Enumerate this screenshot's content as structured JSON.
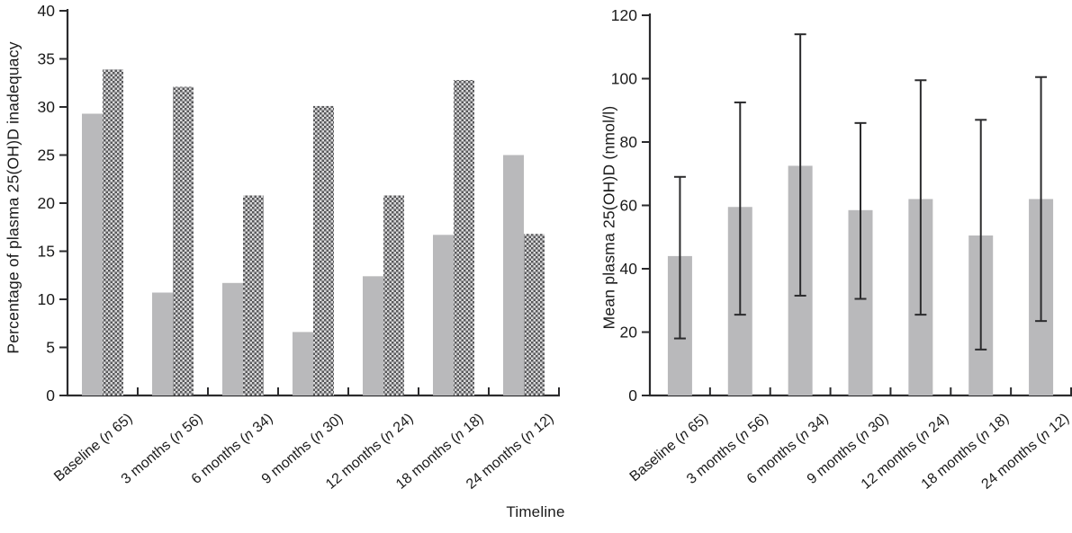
{
  "figure": {
    "xlabel": "Timeline",
    "background": "#ffffff"
  },
  "colors": {
    "solid_bar": "#b9b9bb",
    "pattern_dark": "#58585a",
    "pattern_light": "#d8d8d9",
    "axis": "#2b2b2d",
    "error_bar": "#2b2b2d",
    "text": "#1b1b1b"
  },
  "chart_data": [
    {
      "id": "inadequacy",
      "type": "bar",
      "title": "",
      "xlabel": "",
      "ylabel": "Percentage of plasma 25(OH)D inadequacy",
      "ylim": [
        0,
        40
      ],
      "yticks": [
        0,
        5,
        10,
        15,
        20,
        25,
        30,
        35,
        40
      ],
      "grid": false,
      "legend": "none",
      "categories": [
        "Baseline (n 65)",
        "3 months (n 56)",
        "6 months (n 34)",
        "9 months (n 30)",
        "12 months (n 24)",
        "18 months (n 18)",
        "24 months (n 12)"
      ],
      "category_parts": [
        {
          "prefix": "Baseline",
          "n_symbol": "n",
          "count": "65"
        },
        {
          "prefix": "3 months",
          "n_symbol": "n",
          "count": "56"
        },
        {
          "prefix": "6 months",
          "n_symbol": "n",
          "count": "34"
        },
        {
          "prefix": "9 months",
          "n_symbol": "n",
          "count": "30"
        },
        {
          "prefix": "12 months",
          "n_symbol": "n",
          "count": "24"
        },
        {
          "prefix": "18 months",
          "n_symbol": "n",
          "count": "18"
        },
        {
          "prefix": "24 months",
          "n_symbol": "n",
          "count": "12"
        }
      ],
      "series": [
        {
          "name": "solid",
          "style": "solid",
          "values": [
            29.3,
            10.7,
            11.7,
            6.6,
            12.4,
            16.7,
            25.0
          ]
        },
        {
          "name": "patterned",
          "style": "crosshatch",
          "values": [
            33.9,
            32.1,
            20.8,
            30.1,
            20.8,
            32.8,
            16.8
          ]
        }
      ]
    },
    {
      "id": "mean-plasma",
      "type": "bar",
      "title": "",
      "xlabel": "Timeline",
      "ylabel": "Mean plasma 25(OH)D (nmol/l)",
      "ylim": [
        0,
        120
      ],
      "yticks": [
        0,
        20,
        40,
        60,
        80,
        100,
        120
      ],
      "grid": false,
      "legend": "none",
      "categories": [
        "Baseline (n 65)",
        "3 months (n 56)",
        "6 months (n 34)",
        "9 months (n 30)",
        "12 months (n 24)",
        "18 months (n 18)",
        "24 months (n 12)"
      ],
      "category_parts": [
        {
          "prefix": "Baseline",
          "n_symbol": "n",
          "count": "65"
        },
        {
          "prefix": "3 months",
          "n_symbol": "n",
          "count": "56"
        },
        {
          "prefix": "6 months",
          "n_symbol": "n",
          "count": "34"
        },
        {
          "prefix": "9 months",
          "n_symbol": "n",
          "count": "30"
        },
        {
          "prefix": "12 months",
          "n_symbol": "n",
          "count": "24"
        },
        {
          "prefix": "18 months",
          "n_symbol": "n",
          "count": "18"
        },
        {
          "prefix": "24 months",
          "n_symbol": "n",
          "count": "12"
        }
      ],
      "series": [
        {
          "name": "mean",
          "style": "solid",
          "values": [
            44,
            59.5,
            72.5,
            58.5,
            62,
            50.5,
            62
          ],
          "error_low": [
            18,
            25.5,
            31.5,
            30.5,
            25.5,
            14.5,
            23.5
          ],
          "error_high": [
            69,
            92.5,
            114,
            86,
            99.5,
            87,
            100.5
          ]
        }
      ]
    }
  ]
}
